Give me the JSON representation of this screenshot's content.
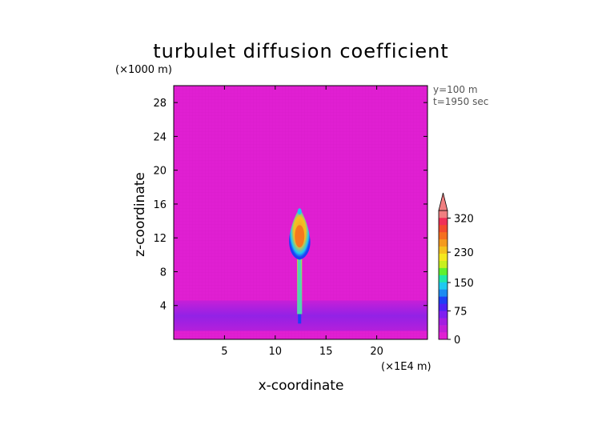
{
  "chart_data": {
    "type": "heatmap",
    "title": "turbulet diffusion coefficient",
    "xlabel": "x-coordinate",
    "ylabel": "z-coordinate",
    "x_unit": "(×1E4 m)",
    "y_unit": "(×1000 m)",
    "annotations": [
      "y=100 m",
      "t=1950 sec"
    ],
    "xlim": [
      0,
      25
    ],
    "ylim": [
      0,
      30
    ],
    "x_ticks": [
      5,
      10,
      15,
      20
    ],
    "y_ticks": [
      4,
      8,
      12,
      16,
      20,
      24,
      28
    ],
    "colorbar": {
      "tick_labels": [
        "0",
        "75",
        "150",
        "230",
        "320"
      ],
      "tick_values": [
        0,
        75,
        150,
        230,
        320
      ],
      "max": 340,
      "extend": "max",
      "colors": [
        "#e01fd2",
        "#c21ed6",
        "#a31ee0",
        "#7f1ff0",
        "#4f22f5",
        "#1f3ff5",
        "#1c8bf2",
        "#1ec9f0",
        "#1fe8a8",
        "#5ff02e",
        "#c8f01e",
        "#f5e81e",
        "#f5c21e",
        "#f59a1e",
        "#f56f1e",
        "#f24a2e",
        "#ef2f58",
        "#f07f80"
      ]
    },
    "background_value": 10,
    "features": [
      {
        "name": "boundary layer band",
        "z_range": [
          1.0,
          4.6
        ],
        "value": 40
      },
      {
        "name": "plume core",
        "x": 12.4,
        "z_range": [
          3.0,
          15.5
        ],
        "value_max": 330
      }
    ]
  }
}
